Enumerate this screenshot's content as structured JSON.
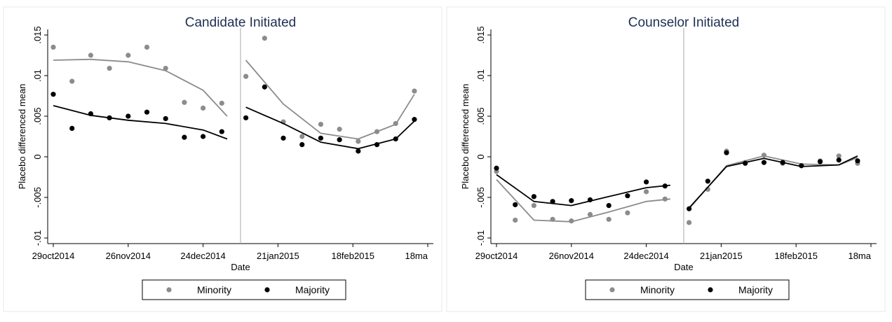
{
  "chart_data": [
    {
      "type": "scatter",
      "title": "Candidate Initiated",
      "xlabel": "Date",
      "ylabel": "Placebo differenced mean",
      "xlim": [
        "2014-10-29",
        "2015-03-18"
      ],
      "ylim": [
        -0.01,
        0.015
      ],
      "x_ticks": [
        "29oct2014",
        "26nov2014",
        "24dec2014",
        "21jan2015",
        "18feb2015",
        "18ma"
      ],
      "y_ticks": [
        ".015",
        ".01",
        ".005",
        "0",
        "-.005",
        "-.01"
      ],
      "cutoff_date": "2015-01-07",
      "grid": false,
      "series": [
        {
          "name": "Minority",
          "color": "#8c8c8c",
          "points": [
            {
              "x": "2014-10-29",
              "y": 0.0135
            },
            {
              "x": "2014-11-05",
              "y": 0.0093
            },
            {
              "x": "2014-11-12",
              "y": 0.0125
            },
            {
              "x": "2014-11-19",
              "y": 0.0109
            },
            {
              "x": "2014-11-26",
              "y": 0.0125
            },
            {
              "x": "2014-12-03",
              "y": 0.0135
            },
            {
              "x": "2014-12-10",
              "y": 0.0109
            },
            {
              "x": "2014-12-17",
              "y": 0.0067
            },
            {
              "x": "2014-12-24",
              "y": 0.006
            },
            {
              "x": "2014-12-31",
              "y": 0.0066
            },
            {
              "x": "2015-01-09",
              "y": 0.0099
            },
            {
              "x": "2015-01-16",
              "y": 0.0146
            },
            {
              "x": "2015-01-23",
              "y": 0.0043
            },
            {
              "x": "2015-01-30",
              "y": 0.0025
            },
            {
              "x": "2015-02-06",
              "y": 0.004
            },
            {
              "x": "2015-02-13",
              "y": 0.0034
            },
            {
              "x": "2015-02-20",
              "y": 0.0019
            },
            {
              "x": "2015-02-27",
              "y": 0.0031
            },
            {
              "x": "2015-03-06",
              "y": 0.0041
            },
            {
              "x": "2015-03-13",
              "y": 0.0081
            }
          ],
          "fit": [
            {
              "x": "2014-10-29",
              "y": 0.0119
            },
            {
              "x": "2014-11-12",
              "y": 0.012
            },
            {
              "x": "2014-11-26",
              "y": 0.0117
            },
            {
              "x": "2014-12-10",
              "y": 0.0106
            },
            {
              "x": "2014-12-24",
              "y": 0.0082
            },
            {
              "x": "2015-01-02",
              "y": 0.005
            },
            {
              "x": "2015-01-09",
              "y": 0.0119
            },
            {
              "x": "2015-01-23",
              "y": 0.0065
            },
            {
              "x": "2015-02-06",
              "y": 0.0029
            },
            {
              "x": "2015-02-20",
              "y": 0.0022
            },
            {
              "x": "2015-03-06",
              "y": 0.004
            },
            {
              "x": "2015-03-13",
              "y": 0.0077
            }
          ]
        },
        {
          "name": "Majority",
          "color": "#000000",
          "points": [
            {
              "x": "2014-10-29",
              "y": 0.0077
            },
            {
              "x": "2014-11-05",
              "y": 0.0035
            },
            {
              "x": "2014-11-12",
              "y": 0.0053
            },
            {
              "x": "2014-11-19",
              "y": 0.0048
            },
            {
              "x": "2014-11-26",
              "y": 0.005
            },
            {
              "x": "2014-12-03",
              "y": 0.0055
            },
            {
              "x": "2014-12-10",
              "y": 0.0047
            },
            {
              "x": "2014-12-17",
              "y": 0.0024
            },
            {
              "x": "2014-12-24",
              "y": 0.0025
            },
            {
              "x": "2014-12-31",
              "y": 0.0031
            },
            {
              "x": "2015-01-09",
              "y": 0.0048
            },
            {
              "x": "2015-01-16",
              "y": 0.0086
            },
            {
              "x": "2015-01-23",
              "y": 0.0023
            },
            {
              "x": "2015-01-30",
              "y": 0.0015
            },
            {
              "x": "2015-02-06",
              "y": 0.0023
            },
            {
              "x": "2015-02-13",
              "y": 0.0021
            },
            {
              "x": "2015-02-20",
              "y": 0.0007
            },
            {
              "x": "2015-02-27",
              "y": 0.0015
            },
            {
              "x": "2015-03-06",
              "y": 0.0022
            },
            {
              "x": "2015-03-13",
              "y": 0.0046
            }
          ],
          "fit": [
            {
              "x": "2014-10-29",
              "y": 0.0063
            },
            {
              "x": "2014-11-12",
              "y": 0.0051
            },
            {
              "x": "2014-11-26",
              "y": 0.0045
            },
            {
              "x": "2014-12-10",
              "y": 0.0041
            },
            {
              "x": "2014-12-24",
              "y": 0.0033
            },
            {
              "x": "2015-01-02",
              "y": 0.0022
            },
            {
              "x": "2015-01-09",
              "y": 0.0061
            },
            {
              "x": "2015-01-23",
              "y": 0.0041
            },
            {
              "x": "2015-02-06",
              "y": 0.0018
            },
            {
              "x": "2015-02-20",
              "y": 0.001
            },
            {
              "x": "2015-03-06",
              "y": 0.0022
            },
            {
              "x": "2015-03-13",
              "y": 0.0044
            }
          ]
        }
      ],
      "legend": {
        "position": "bottom",
        "entries": [
          "Minority",
          "Majority"
        ]
      }
    },
    {
      "type": "scatter",
      "title": "Counselor Initiated",
      "xlabel": "Date",
      "ylabel": "Placebo differenced mean",
      "xlim": [
        "2014-10-29",
        "2015-03-18"
      ],
      "ylim": [
        -0.01,
        0.015
      ],
      "x_ticks": [
        "29oct2014",
        "26nov2014",
        "24dec2014",
        "21jan2015",
        "18feb2015",
        "18ma"
      ],
      "y_ticks": [
        ".015",
        ".01",
        ".005",
        "0",
        "-.005",
        "-.01"
      ],
      "cutoff_date": "2015-01-07",
      "grid": false,
      "series": [
        {
          "name": "Minority",
          "color": "#8c8c8c",
          "points": [
            {
              "x": "2014-10-29",
              "y": -0.0018
            },
            {
              "x": "2014-11-05",
              "y": -0.0078
            },
            {
              "x": "2014-11-12",
              "y": -0.006
            },
            {
              "x": "2014-11-19",
              "y": -0.0077
            },
            {
              "x": "2014-11-26",
              "y": -0.0079
            },
            {
              "x": "2014-12-03",
              "y": -0.0071
            },
            {
              "x": "2014-12-10",
              "y": -0.0077
            },
            {
              "x": "2014-12-17",
              "y": -0.0069
            },
            {
              "x": "2014-12-24",
              "y": -0.0043
            },
            {
              "x": "2014-12-31",
              "y": -0.0052
            },
            {
              "x": "2015-01-09",
              "y": -0.0081
            },
            {
              "x": "2015-01-16",
              "y": -0.004
            },
            {
              "x": "2015-01-23",
              "y": 0.0007
            },
            {
              "x": "2015-01-30",
              "y": -0.0007
            },
            {
              "x": "2015-02-06",
              "y": 0.0002
            },
            {
              "x": "2015-02-13",
              "y": -0.0008
            },
            {
              "x": "2015-02-20",
              "y": -0.0011
            },
            {
              "x": "2015-02-27",
              "y": -0.0005
            },
            {
              "x": "2015-03-06",
              "y": 0.0001
            },
            {
              "x": "2015-03-13",
              "y": -0.0008
            }
          ],
          "fit": [
            {
              "x": "2014-10-29",
              "y": -0.0028
            },
            {
              "x": "2014-11-12",
              "y": -0.0078
            },
            {
              "x": "2014-11-26",
              "y": -0.008
            },
            {
              "x": "2014-12-10",
              "y": -0.0068
            },
            {
              "x": "2014-12-24",
              "y": -0.0055
            },
            {
              "x": "2015-01-02",
              "y": -0.0052
            },
            {
              "x": "2015-01-09",
              "y": -0.0064
            },
            {
              "x": "2015-01-23",
              "y": -0.0011
            },
            {
              "x": "2015-02-06",
              "y": 0.0001
            },
            {
              "x": "2015-02-20",
              "y": -0.0009
            },
            {
              "x": "2015-03-06",
              "y": -0.001
            },
            {
              "x": "2015-03-13",
              "y": -0.0001
            }
          ]
        },
        {
          "name": "Majority",
          "color": "#000000",
          "points": [
            {
              "x": "2014-10-29",
              "y": -0.0014
            },
            {
              "x": "2014-11-05",
              "y": -0.0059
            },
            {
              "x": "2014-11-12",
              "y": -0.0049
            },
            {
              "x": "2014-11-19",
              "y": -0.0055
            },
            {
              "x": "2014-11-26",
              "y": -0.0054
            },
            {
              "x": "2014-12-03",
              "y": -0.0053
            },
            {
              "x": "2014-12-10",
              "y": -0.006
            },
            {
              "x": "2014-12-17",
              "y": -0.0048
            },
            {
              "x": "2014-12-24",
              "y": -0.0031
            },
            {
              "x": "2014-12-31",
              "y": -0.0036
            },
            {
              "x": "2015-01-09",
              "y": -0.0064
            },
            {
              "x": "2015-01-16",
              "y": -0.003
            },
            {
              "x": "2015-01-23",
              "y": 0.0005
            },
            {
              "x": "2015-01-30",
              "y": -0.0008
            },
            {
              "x": "2015-02-06",
              "y": -0.0007
            },
            {
              "x": "2015-02-13",
              "y": -0.0007
            },
            {
              "x": "2015-02-20",
              "y": -0.0011
            },
            {
              "x": "2015-02-27",
              "y": -0.0006
            },
            {
              "x": "2015-03-06",
              "y": -0.0004
            },
            {
              "x": "2015-03-13",
              "y": -0.0005
            }
          ],
          "fit": [
            {
              "x": "2014-10-29",
              "y": -0.0022
            },
            {
              "x": "2014-11-12",
              "y": -0.0055
            },
            {
              "x": "2014-11-26",
              "y": -0.006
            },
            {
              "x": "2014-12-10",
              "y": -0.0049
            },
            {
              "x": "2014-12-24",
              "y": -0.0038
            },
            {
              "x": "2015-01-02",
              "y": -0.0035
            },
            {
              "x": "2015-01-09",
              "y": -0.0063
            },
            {
              "x": "2015-01-23",
              "y": -0.0012
            },
            {
              "x": "2015-02-06",
              "y": -0.0002
            },
            {
              "x": "2015-02-20",
              "y": -0.0012
            },
            {
              "x": "2015-03-06",
              "y": -0.001
            },
            {
              "x": "2015-03-13",
              "y": 0.0001
            }
          ]
        }
      ],
      "legend": {
        "position": "bottom",
        "entries": [
          "Minority",
          "Majority"
        ]
      }
    }
  ]
}
